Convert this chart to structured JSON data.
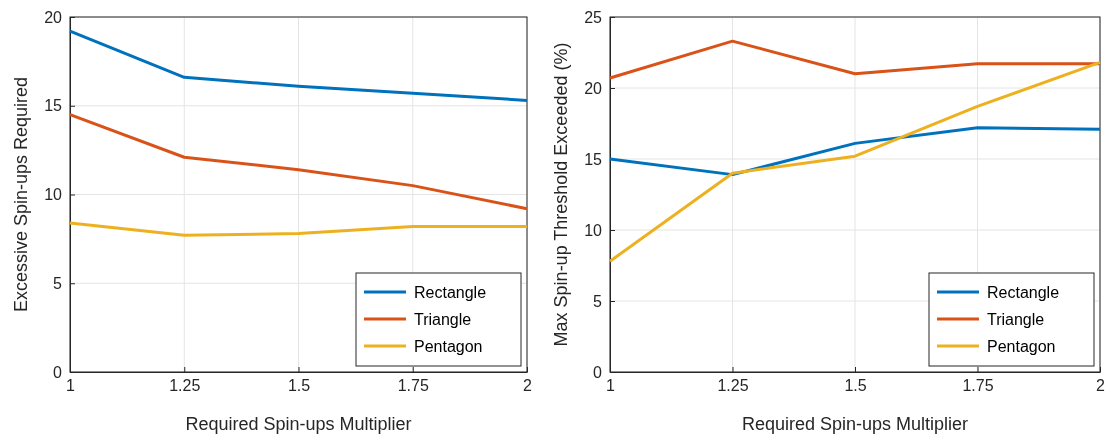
{
  "chart_data": [
    {
      "type": "line",
      "xlabel": "Required Spin-ups Multiplier",
      "ylabel": "Excessive Spin-ups Required",
      "x": [
        1,
        1.25,
        1.5,
        1.75,
        2
      ],
      "xlim": [
        1,
        2
      ],
      "xticks": [
        1,
        1.25,
        1.5,
        1.75,
        2
      ],
      "ylim": [
        0,
        20
      ],
      "yticks": [
        0,
        5,
        10,
        15,
        20
      ],
      "grid": true,
      "legend": "bottom right",
      "series": [
        {
          "name": "Rectangle",
          "color": "#0072bd",
          "values": [
            19.2,
            16.6,
            16.1,
            15.7,
            15.3
          ]
        },
        {
          "name": "Triangle",
          "color": "#d95319",
          "values": [
            14.5,
            12.1,
            11.4,
            10.5,
            9.2
          ]
        },
        {
          "name": "Pentagon",
          "color": "#edb120",
          "values": [
            8.4,
            7.7,
            7.8,
            8.2,
            8.2
          ]
        }
      ]
    },
    {
      "type": "line",
      "xlabel": "Required Spin-ups Multiplier",
      "ylabel": "Max Spin-up Threshold Exceeded (%)",
      "x": [
        1,
        1.25,
        1.5,
        1.75,
        2
      ],
      "xlim": [
        1,
        2
      ],
      "xticks": [
        1,
        1.25,
        1.5,
        1.75,
        2
      ],
      "ylim": [
        0,
        25
      ],
      "yticks": [
        0,
        5,
        10,
        15,
        20,
        25
      ],
      "grid": true,
      "legend": "bottom right",
      "series": [
        {
          "name": "Rectangle",
          "color": "#0072bd",
          "values": [
            15.0,
            13.9,
            16.1,
            17.2,
            17.1
          ]
        },
        {
          "name": "Triangle",
          "color": "#d95319",
          "values": [
            20.7,
            23.3,
            21.0,
            21.7,
            21.7
          ]
        },
        {
          "name": "Pentagon",
          "color": "#edb120",
          "values": [
            7.8,
            14.0,
            15.2,
            18.7,
            21.8
          ]
        }
      ]
    }
  ]
}
